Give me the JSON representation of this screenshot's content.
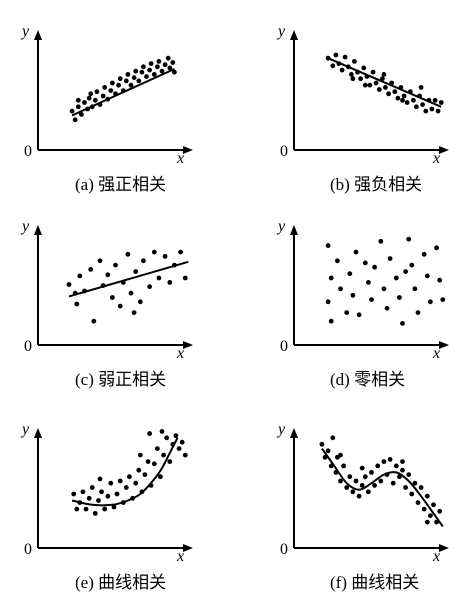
{
  "chart_data": [
    {
      "type": "scatter",
      "caption": "(a) 强正相关",
      "xlabel": "x",
      "ylabel": "y",
      "origin_label": "0",
      "trend": {
        "type": "line",
        "points": [
          [
            0.22,
            0.32
          ],
          [
            0.88,
            0.75
          ]
        ]
      },
      "points": [
        [
          0.22,
          0.36
        ],
        [
          0.24,
          0.28
        ],
        [
          0.26,
          0.4
        ],
        [
          0.28,
          0.33
        ],
        [
          0.3,
          0.44
        ],
        [
          0.32,
          0.38
        ],
        [
          0.33,
          0.48
        ],
        [
          0.35,
          0.4
        ],
        [
          0.37,
          0.46
        ],
        [
          0.38,
          0.54
        ],
        [
          0.4,
          0.42
        ],
        [
          0.42,
          0.5
        ],
        [
          0.43,
          0.58
        ],
        [
          0.45,
          0.47
        ],
        [
          0.47,
          0.55
        ],
        [
          0.48,
          0.62
        ],
        [
          0.5,
          0.52
        ],
        [
          0.52,
          0.6
        ],
        [
          0.53,
          0.66
        ],
        [
          0.55,
          0.55
        ],
        [
          0.57,
          0.64
        ],
        [
          0.58,
          0.7
        ],
        [
          0.6,
          0.6
        ],
        [
          0.62,
          0.67
        ],
        [
          0.63,
          0.73
        ],
        [
          0.65,
          0.64
        ],
        [
          0.67,
          0.72
        ],
        [
          0.68,
          0.77
        ],
        [
          0.7,
          0.68
        ],
        [
          0.72,
          0.74
        ],
        [
          0.73,
          0.8
        ],
        [
          0.75,
          0.7
        ],
        [
          0.77,
          0.77
        ],
        [
          0.78,
          0.82
        ],
        [
          0.8,
          0.73
        ],
        [
          0.82,
          0.79
        ],
        [
          0.84,
          0.85
        ],
        [
          0.85,
          0.76
        ],
        [
          0.87,
          0.81
        ],
        [
          0.88,
          0.72
        ],
        [
          0.26,
          0.46
        ],
        [
          0.34,
          0.52
        ]
      ]
    },
    {
      "type": "scatter",
      "caption": "(b) 强负相关",
      "xlabel": "x",
      "ylabel": "y",
      "origin_label": "0",
      "trend": {
        "type": "line",
        "points": [
          [
            0.22,
            0.85
          ],
          [
            0.95,
            0.4
          ]
        ]
      },
      "points": [
        [
          0.22,
          0.85
        ],
        [
          0.25,
          0.78
        ],
        [
          0.27,
          0.88
        ],
        [
          0.29,
          0.8
        ],
        [
          0.31,
          0.74
        ],
        [
          0.33,
          0.86
        ],
        [
          0.35,
          0.77
        ],
        [
          0.37,
          0.7
        ],
        [
          0.39,
          0.82
        ],
        [
          0.41,
          0.72
        ],
        [
          0.43,
          0.66
        ],
        [
          0.45,
          0.76
        ],
        [
          0.47,
          0.68
        ],
        [
          0.49,
          0.6
        ],
        [
          0.51,
          0.72
        ],
        [
          0.53,
          0.62
        ],
        [
          0.55,
          0.56
        ],
        [
          0.57,
          0.66
        ],
        [
          0.59,
          0.58
        ],
        [
          0.61,
          0.52
        ],
        [
          0.63,
          0.62
        ],
        [
          0.65,
          0.54
        ],
        [
          0.67,
          0.48
        ],
        [
          0.69,
          0.58
        ],
        [
          0.71,
          0.5
        ],
        [
          0.73,
          0.44
        ],
        [
          0.75,
          0.54
        ],
        [
          0.77,
          0.46
        ],
        [
          0.79,
          0.4
        ],
        [
          0.81,
          0.5
        ],
        [
          0.83,
          0.42
        ],
        [
          0.85,
          0.36
        ],
        [
          0.87,
          0.46
        ],
        [
          0.89,
          0.38
        ],
        [
          0.91,
          0.46
        ],
        [
          0.93,
          0.36
        ],
        [
          0.95,
          0.44
        ],
        [
          0.46,
          0.6
        ],
        [
          0.58,
          0.7
        ],
        [
          0.38,
          0.66
        ],
        [
          0.7,
          0.46
        ],
        [
          0.82,
          0.58
        ]
      ]
    },
    {
      "type": "scatter",
      "caption": "(c) 弱正相关",
      "xlabel": "x",
      "ylabel": "y",
      "origin_label": "0",
      "trend": {
        "type": "line",
        "points": [
          [
            0.2,
            0.45
          ],
          [
            0.97,
            0.77
          ]
        ]
      },
      "points": [
        [
          0.2,
          0.56
        ],
        [
          0.25,
          0.38
        ],
        [
          0.27,
          0.64
        ],
        [
          0.3,
          0.5
        ],
        [
          0.34,
          0.7
        ],
        [
          0.36,
          0.22
        ],
        [
          0.4,
          0.78
        ],
        [
          0.42,
          0.55
        ],
        [
          0.45,
          0.65
        ],
        [
          0.48,
          0.44
        ],
        [
          0.5,
          0.74
        ],
        [
          0.53,
          0.36
        ],
        [
          0.55,
          0.58
        ],
        [
          0.58,
          0.84
        ],
        [
          0.6,
          0.48
        ],
        [
          0.63,
          0.68
        ],
        [
          0.66,
          0.4
        ],
        [
          0.68,
          0.78
        ],
        [
          0.72,
          0.54
        ],
        [
          0.75,
          0.86
        ],
        [
          0.78,
          0.62
        ],
        [
          0.82,
          0.82
        ],
        [
          0.85,
          0.58
        ],
        [
          0.88,
          0.74
        ],
        [
          0.92,
          0.86
        ],
        [
          0.95,
          0.62
        ],
        [
          0.24,
          0.48
        ],
        [
          0.62,
          0.3
        ]
      ]
    },
    {
      "type": "scatter",
      "caption": "(d) 零相关",
      "xlabel": "x",
      "ylabel": "y",
      "origin_label": "0",
      "trend": null,
      "points": [
        [
          0.22,
          0.92
        ],
        [
          0.28,
          0.78
        ],
        [
          0.24,
          0.62
        ],
        [
          0.22,
          0.4
        ],
        [
          0.3,
          0.52
        ],
        [
          0.24,
          0.22
        ],
        [
          0.36,
          0.66
        ],
        [
          0.4,
          0.86
        ],
        [
          0.38,
          0.46
        ],
        [
          0.42,
          0.28
        ],
        [
          0.48,
          0.58
        ],
        [
          0.52,
          0.72
        ],
        [
          0.5,
          0.42
        ],
        [
          0.56,
          0.96
        ],
        [
          0.58,
          0.52
        ],
        [
          0.6,
          0.34
        ],
        [
          0.62,
          0.8
        ],
        [
          0.66,
          0.62
        ],
        [
          0.68,
          0.44
        ],
        [
          0.7,
          0.2
        ],
        [
          0.74,
          0.98
        ],
        [
          0.76,
          0.74
        ],
        [
          0.78,
          0.52
        ],
        [
          0.8,
          0.3
        ],
        [
          0.84,
          0.84
        ],
        [
          0.86,
          0.64
        ],
        [
          0.88,
          0.4
        ],
        [
          0.92,
          0.9
        ],
        [
          0.94,
          0.6
        ],
        [
          0.96,
          0.42
        ],
        [
          0.34,
          0.3
        ],
        [
          0.46,
          0.76
        ],
        [
          0.72,
          0.68
        ]
      ]
    },
    {
      "type": "scatter",
      "caption": "(e) 曲线相关",
      "xlabel": "x",
      "ylabel": "y",
      "origin_label": "0",
      "trend": {
        "type": "curve",
        "points": [
          [
            0.22,
            0.44
          ],
          [
            0.35,
            0.4
          ],
          [
            0.48,
            0.4
          ],
          [
            0.58,
            0.44
          ],
          [
            0.66,
            0.5
          ],
          [
            0.74,
            0.62
          ],
          [
            0.8,
            0.74
          ],
          [
            0.85,
            0.88
          ],
          [
            0.9,
            1.02
          ]
        ]
      },
      "points": [
        [
          0.23,
          0.5
        ],
        [
          0.25,
          0.36
        ],
        [
          0.27,
          0.42
        ],
        [
          0.29,
          0.52
        ],
        [
          0.31,
          0.36
        ],
        [
          0.33,
          0.46
        ],
        [
          0.35,
          0.56
        ],
        [
          0.37,
          0.32
        ],
        [
          0.39,
          0.44
        ],
        [
          0.41,
          0.52
        ],
        [
          0.43,
          0.36
        ],
        [
          0.45,
          0.48
        ],
        [
          0.47,
          0.6
        ],
        [
          0.49,
          0.38
        ],
        [
          0.51,
          0.5
        ],
        [
          0.53,
          0.62
        ],
        [
          0.55,
          0.42
        ],
        [
          0.57,
          0.56
        ],
        [
          0.59,
          0.66
        ],
        [
          0.61,
          0.46
        ],
        [
          0.63,
          0.6
        ],
        [
          0.65,
          0.72
        ],
        [
          0.67,
          0.52
        ],
        [
          0.69,
          0.68
        ],
        [
          0.71,
          0.8
        ],
        [
          0.73,
          0.58
        ],
        [
          0.75,
          0.78
        ],
        [
          0.77,
          0.92
        ],
        [
          0.79,
          0.66
        ],
        [
          0.81,
          0.86
        ],
        [
          0.83,
          1.02
        ],
        [
          0.85,
          0.8
        ],
        [
          0.87,
          0.96
        ],
        [
          0.89,
          1.04
        ],
        [
          0.91,
          0.92
        ],
        [
          0.93,
          0.98
        ],
        [
          0.95,
          0.86
        ],
        [
          0.72,
          1.06
        ],
        [
          0.8,
          1.08
        ],
        [
          0.66,
          0.86
        ],
        [
          0.4,
          0.64
        ]
      ]
    },
    {
      "type": "scatter",
      "caption": "(f) 曲线相关",
      "xlabel": "x",
      "ylabel": "y",
      "origin_label": "0",
      "trend": {
        "type": "curve",
        "points": [
          [
            0.18,
            0.92
          ],
          [
            0.26,
            0.76
          ],
          [
            0.34,
            0.6
          ],
          [
            0.42,
            0.54
          ],
          [
            0.5,
            0.6
          ],
          [
            0.58,
            0.68
          ],
          [
            0.66,
            0.7
          ],
          [
            0.74,
            0.62
          ],
          [
            0.82,
            0.48
          ],
          [
            0.9,
            0.32
          ],
          [
            0.96,
            0.2
          ]
        ]
      },
      "points": [
        [
          0.18,
          0.96
        ],
        [
          0.2,
          0.84
        ],
        [
          0.22,
          0.9
        ],
        [
          0.24,
          0.76
        ],
        [
          0.25,
          1.02
        ],
        [
          0.27,
          0.7
        ],
        [
          0.28,
          0.84
        ],
        [
          0.3,
          0.62
        ],
        [
          0.32,
          0.76
        ],
        [
          0.34,
          0.56
        ],
        [
          0.36,
          0.66
        ],
        [
          0.38,
          0.52
        ],
        [
          0.4,
          0.62
        ],
        [
          0.42,
          0.48
        ],
        [
          0.44,
          0.58
        ],
        [
          0.46,
          0.66
        ],
        [
          0.48,
          0.52
        ],
        [
          0.5,
          0.7
        ],
        [
          0.52,
          0.58
        ],
        [
          0.54,
          0.76
        ],
        [
          0.56,
          0.62
        ],
        [
          0.58,
          0.8
        ],
        [
          0.6,
          0.68
        ],
        [
          0.62,
          0.82
        ],
        [
          0.64,
          0.6
        ],
        [
          0.66,
          0.76
        ],
        [
          0.68,
          0.66
        ],
        [
          0.7,
          0.72
        ],
        [
          0.72,
          0.56
        ],
        [
          0.74,
          0.68
        ],
        [
          0.76,
          0.5
        ],
        [
          0.78,
          0.6
        ],
        [
          0.8,
          0.42
        ],
        [
          0.82,
          0.56
        ],
        [
          0.84,
          0.36
        ],
        [
          0.86,
          0.48
        ],
        [
          0.88,
          0.3
        ],
        [
          0.9,
          0.4
        ],
        [
          0.92,
          0.24
        ],
        [
          0.94,
          0.34
        ],
        [
          0.3,
          0.86
        ],
        [
          0.44,
          0.74
        ],
        [
          0.7,
          0.8
        ],
        [
          0.86,
          0.24
        ]
      ]
    }
  ]
}
